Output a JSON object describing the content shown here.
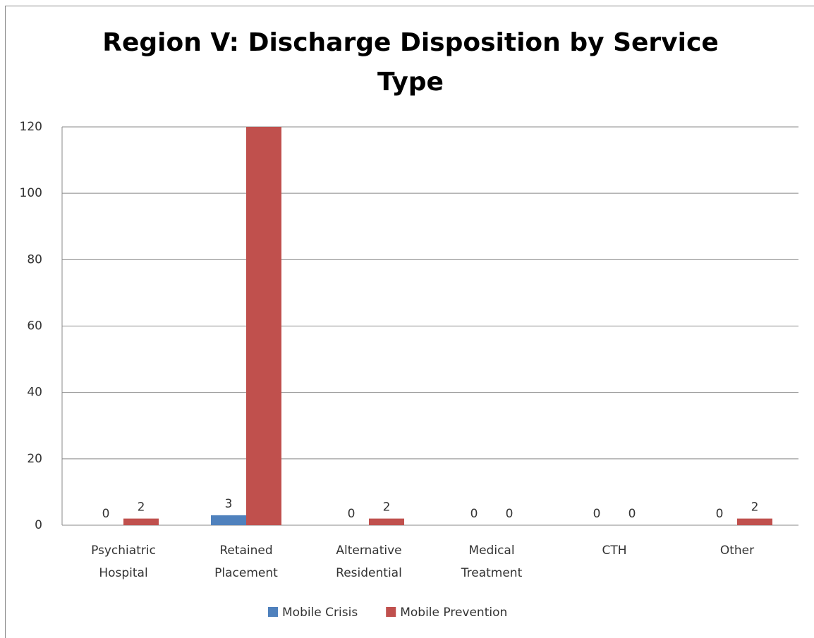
{
  "chart_data": {
    "type": "bar",
    "title": "Region V: Discharge Disposition by Service Type",
    "categories": [
      "Psychiatric Hospital",
      "Retained Placement",
      "Alternative Residential",
      "Medical Treatment",
      "CTH",
      "Other"
    ],
    "series": [
      {
        "name": "Mobile Crisis",
        "color": "#4f81bd",
        "values": [
          0,
          3,
          0,
          0,
          0,
          0
        ]
      },
      {
        "name": "Mobile Prevention",
        "color": "#c0504d",
        "values": [
          2,
          120,
          2,
          0,
          0,
          2
        ]
      }
    ],
    "ylim": [
      0,
      120
    ],
    "yticks": [
      0,
      20,
      40,
      60,
      80,
      100,
      120
    ],
    "grid": true,
    "legend": "bottom"
  }
}
